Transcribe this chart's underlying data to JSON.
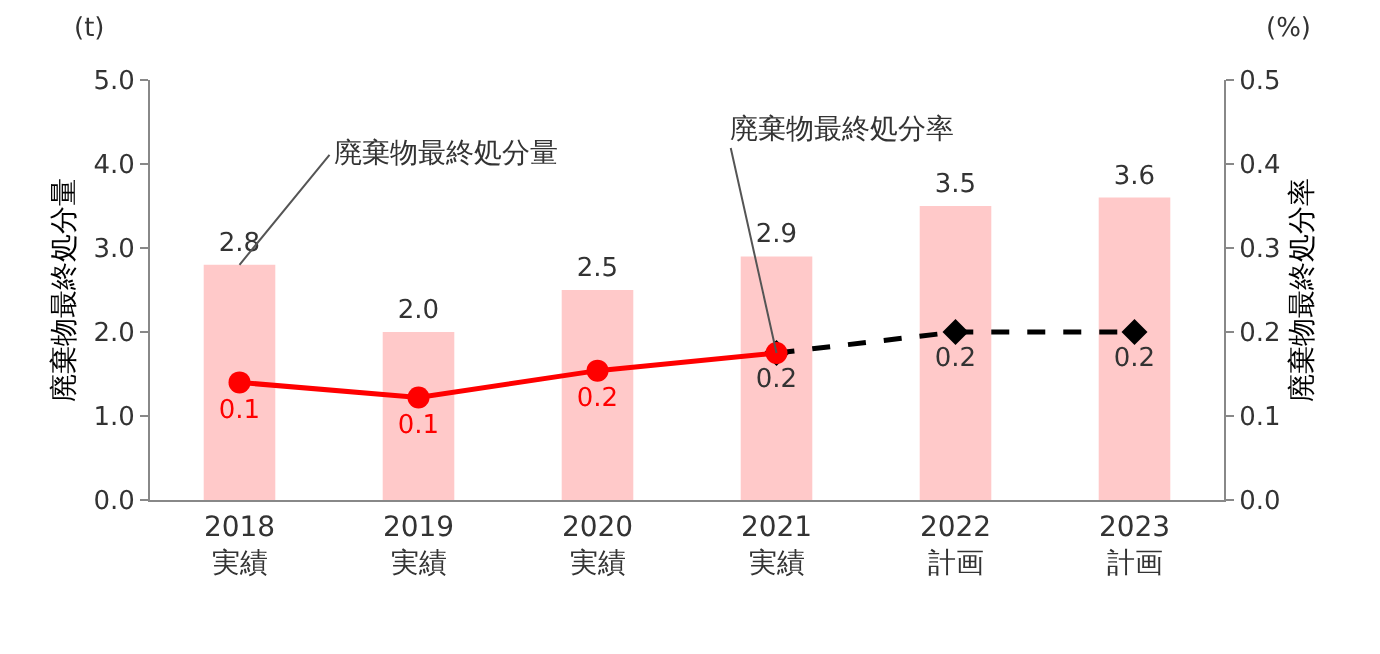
{
  "chart_data": {
    "type": "bar",
    "categories": [
      "2018\n実績",
      "2019\n実績",
      "2020\n実績",
      "2021\n実績",
      "2022\n計画",
      "2023\n計画"
    ],
    "ylabel": "廃棄物最終処分量",
    "y2label": "廃棄物最終処分率",
    "ylim": [
      0,
      5
    ],
    "yticks": [
      {
        "value": 0,
        "label": "0.0"
      },
      {
        "value": 1,
        "label": "1.0"
      },
      {
        "value": 2,
        "label": "2.0"
      },
      {
        "value": 3,
        "label": "3.0"
      },
      {
        "value": 4,
        "label": "4.0"
      },
      {
        "value": 5,
        "label": "5.0"
      }
    ],
    "y2lim": [
      0,
      0.5
    ],
    "y2ticks": [
      {
        "value": 0,
        "label": "0.0"
      },
      0.1,
      0.2,
      0.3,
      0.4,
      0.5
    ],
    "annotations": [
      "(t)",
      "(%)",
      {
        "text": "廃棄物最終処分量",
        "x": "2018\n実績",
        "y": 2.8
      },
      {
        "text": "廃棄物最終処分率",
        "x": "2021\n実績",
        "y": 1.75
      }
    ],
    "series": [
      {
        "type": "bar",
        "color": "#ffc9c9",
        "values": [
          2.8,
          2.0,
          2.5,
          2.9,
          3.5,
          3.6
        ],
        "value_labels": [
          "2.8",
          "2.0",
          "2.5",
          "2.9",
          "3.5",
          "3.6"
        ]
      },
      {
        "type": "line",
        "axis": "y2",
        "color": "#000000",
        "line_style": "dashed",
        "marker": "diamond",
        "values": [
          null,
          null,
          null,
          0.175,
          0.2,
          0.2
        ],
        "value_labels": [
          null,
          null,
          null,
          "0.2",
          "0.2",
          "0.2"
        ]
      },
      {
        "type": "line",
        "axis": "y2",
        "color": "#ff0000",
        "line_style": "solid",
        "marker": "circle",
        "values": [
          0.14,
          0.122,
          0.154,
          0.175,
          null,
          null
        ],
        "value_labels": [
          "0.1",
          "0.1",
          "0.2",
          null,
          null,
          null
        ]
      }
    ]
  }
}
